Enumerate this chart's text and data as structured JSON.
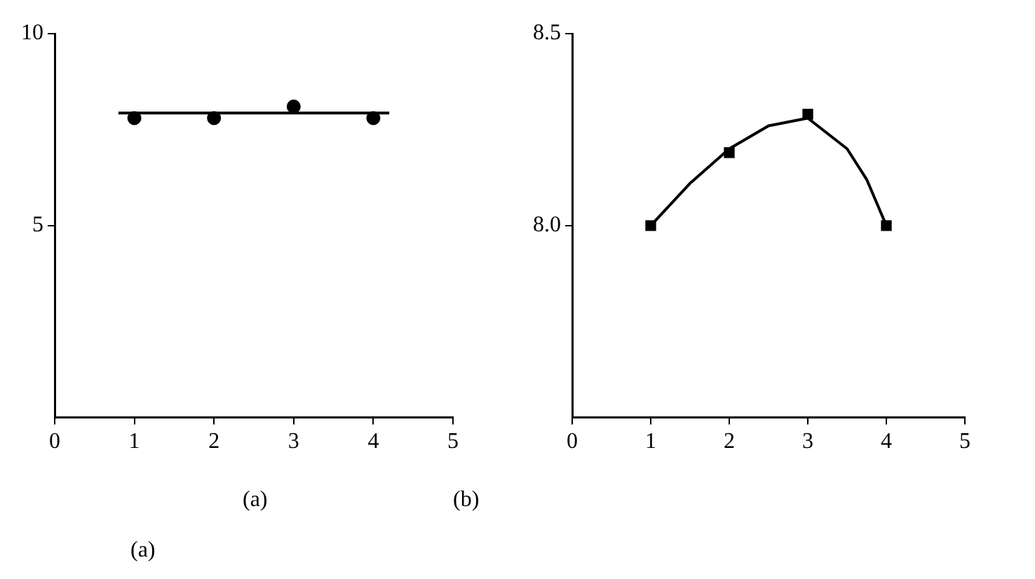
{
  "chart_data": [
    {
      "type": "scatter",
      "annotations": [
        "(a)",
        "(a)"
      ],
      "xlim": [
        0,
        5
      ],
      "xticks": [
        0,
        1,
        2,
        3,
        4,
        5
      ],
      "ylim": [
        0,
        10
      ],
      "yticks": [
        5,
        10
      ],
      "grid": false,
      "legend": false,
      "marker": "circle",
      "series": [
        {
          "type": "scatter",
          "color": "#000000",
          "x": [
            1,
            2,
            3,
            4
          ],
          "values": [
            7.8,
            7.8,
            8.1,
            7.8
          ]
        },
        {
          "type": "line",
          "color": "#000000",
          "marker": "none",
          "x": [
            0.8,
            4.2
          ],
          "values": [
            7.93,
            7.93
          ]
        }
      ]
    },
    {
      "type": "scatter",
      "annotations": [
        "(b)"
      ],
      "xlim": [
        0,
        5
      ],
      "xticks": [
        0,
        1,
        2,
        3,
        4,
        5
      ],
      "ylim": [
        7.5,
        8.5
      ],
      "yticks": [
        {
          "value": 8,
          "label": "8.0"
        },
        8.5
      ],
      "grid": false,
      "legend": false,
      "marker": "square",
      "series": [
        {
          "type": "scatter",
          "color": "#000000",
          "x": [
            1,
            2,
            3,
            4
          ],
          "values": [
            8.0,
            8.19,
            8.29,
            8.0
          ]
        },
        {
          "type": "line",
          "color": "#000000",
          "marker": "none",
          "x": [
            1,
            1.5,
            2,
            2.5,
            3,
            3.5,
            3.75,
            4
          ],
          "values": [
            8.0,
            8.11,
            8.2,
            8.26,
            8.28,
            8.2,
            8.12,
            8.0
          ]
        }
      ]
    }
  ]
}
